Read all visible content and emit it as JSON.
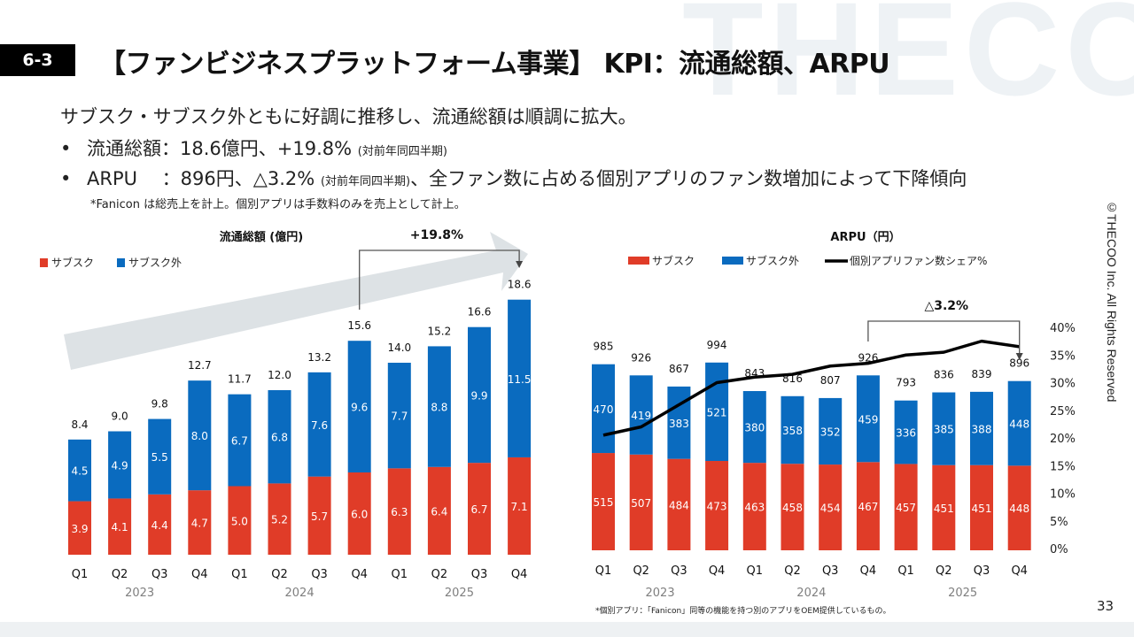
{
  "watermark": "THECOO",
  "header": {
    "section_tag": "6-3",
    "title": "【ファンビジネスプラットフォーム事業】 KPI：流通総額、ARPU"
  },
  "summary": {
    "lead": "サブスク・サブスク外ともに好調に推移し、流通総額は順調に拡大。",
    "bullets": [
      {
        "marker": "•",
        "label": "流通総額：18.6億円、+19.8%",
        "qualifier": "(対前年同四半期)",
        "tail": ""
      },
      {
        "marker": "•",
        "label": "ARPU　 ：896円、△3.2%",
        "qualifier": "(対前年同四半期)",
        "tail": "、全ファン数に占める個別アプリのファン数増加によって下降傾向"
      }
    ],
    "note": "*Fanicon は総売上を計上。個別アプリは手数料のみを売上として計上。"
  },
  "colors": {
    "subsc": "#e03c28",
    "non_subsc": "#0a6bbf",
    "share_line": "#000000",
    "trend_arrow": "#dde2e5",
    "watermark": "#eef2f5",
    "year_label": "#7f7f7f"
  },
  "chart_data": [
    {
      "type": "bar",
      "stacked": true,
      "title": "流通総額 (億円)",
      "legend": [
        "サブスク",
        "サブスク外"
      ],
      "legend_position": "top-left",
      "categories": [
        "Q1",
        "Q2",
        "Q3",
        "Q4",
        "Q1",
        "Q2",
        "Q3",
        "Q4",
        "Q1",
        "Q2",
        "Q3",
        "Q4"
      ],
      "year_groups": [
        {
          "label": "2023",
          "span": 4
        },
        {
          "label": "2024",
          "span": 4
        },
        {
          "label": "2025",
          "span": 4
        }
      ],
      "series": [
        {
          "name": "サブスク",
          "values": [
            3.9,
            4.1,
            4.4,
            4.7,
            5.0,
            5.2,
            5.7,
            6.0,
            6.3,
            6.4,
            6.7,
            7.1
          ]
        },
        {
          "name": "サブスク外",
          "values": [
            4.5,
            4.9,
            5.5,
            8.0,
            6.7,
            6.8,
            7.6,
            9.6,
            7.7,
            8.8,
            9.9,
            11.5
          ]
        }
      ],
      "totals": [
        8.4,
        9.0,
        9.8,
        12.7,
        11.7,
        12.0,
        13.2,
        15.6,
        14.0,
        15.2,
        16.6,
        18.6
      ],
      "ylim": [
        0,
        20
      ],
      "grid": false,
      "annotation": {
        "text": "+19.8%",
        "from_index": 7,
        "to_index": 11
      }
    },
    {
      "type": "bar",
      "stacked": true,
      "title": "ARPU（円）",
      "legend": [
        "サブスク",
        "サブスク外",
        "個別アプリファン数シェア%"
      ],
      "legend_position": "top",
      "categories": [
        "Q1",
        "Q2",
        "Q3",
        "Q4",
        "Q1",
        "Q2",
        "Q3",
        "Q4",
        "Q1",
        "Q2",
        "Q3",
        "Q4"
      ],
      "year_groups": [
        {
          "label": "2023",
          "span": 4
        },
        {
          "label": "2024",
          "span": 4
        },
        {
          "label": "2025",
          "span": 4
        }
      ],
      "series": [
        {
          "name": "サブスク",
          "values": [
            515,
            507,
            484,
            473,
            463,
            458,
            454,
            467,
            457,
            451,
            451,
            448
          ]
        },
        {
          "name": "サブスク外",
          "values": [
            470,
            419,
            383,
            521,
            380,
            358,
            352,
            459,
            336,
            385,
            388,
            448
          ]
        },
        {
          "name": "個別アプリファン数シェア%",
          "type": "line",
          "axis": "right",
          "values": [
            20.5,
            22.0,
            26.0,
            30.0,
            31.0,
            31.5,
            33.0,
            33.5,
            35.0,
            35.5,
            37.5,
            36.5
          ]
        }
      ],
      "totals": [
        985,
        926,
        867,
        994,
        843,
        816,
        807,
        926,
        793,
        836,
        839,
        896
      ],
      "ylim": [
        0,
        1100
      ],
      "y2lim": [
        0,
        40
      ],
      "y2_ticks": [
        "0%",
        "5%",
        "10%",
        "15%",
        "20%",
        "25%",
        "30%",
        "35%",
        "40%"
      ],
      "grid": false,
      "annotation": {
        "text": "△3.2%",
        "from_index": 7,
        "to_index": 11
      }
    }
  ],
  "copyright": "©THECOO Inc. All Rights Reserved",
  "footnote": "*個別アプリ：「Fanicon」同等の機能を持つ別のアプリをOEM提供しているもの。",
  "page_number": "33"
}
